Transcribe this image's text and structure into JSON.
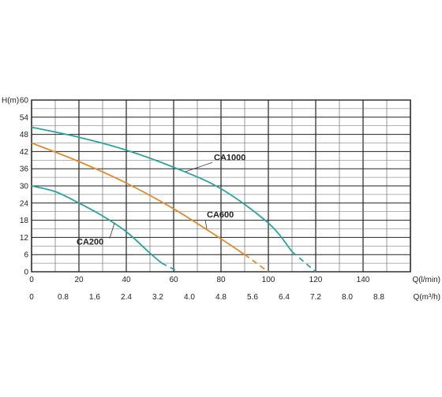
{
  "chart_data": {
    "type": "line",
    "title": "",
    "ylabel": "H(m)",
    "xlabel": "Q(l/min)",
    "x2label": "Q(m³/h)",
    "xlim": [
      0,
      160
    ],
    "ylim": [
      0,
      60
    ],
    "grid": true,
    "y_ticks": [
      "0",
      "6",
      "12",
      "18",
      "24",
      "30",
      "36",
      "42",
      "48",
      "54",
      "60"
    ],
    "x_ticks": [
      "0",
      "20",
      "40",
      "60",
      "80",
      "100",
      "120",
      "140"
    ],
    "x2_ticks": [
      "0",
      "0.8",
      "1.6",
      "2.4",
      "3.2",
      "4.0",
      "4.8",
      "5.6",
      "6.4",
      "7.2",
      "8.0",
      "8.8"
    ],
    "series": [
      {
        "name": "CA200",
        "color": "#2aa3a3",
        "points": [
          [
            0,
            30
          ],
          [
            10,
            28
          ],
          [
            20,
            24
          ],
          [
            30,
            19.5
          ],
          [
            40,
            14
          ],
          [
            50,
            6.5
          ],
          [
            55,
            3
          ],
          [
            62,
            0
          ]
        ],
        "dash_from_x": 55
      },
      {
        "name": "CA600",
        "color": "#e38a2b",
        "points": [
          [
            0,
            45
          ],
          [
            20,
            38.5
          ],
          [
            40,
            31
          ],
          [
            60,
            22
          ],
          [
            80,
            11.5
          ],
          [
            90,
            6
          ],
          [
            100,
            0
          ]
        ],
        "dash_from_x": 90
      },
      {
        "name": "CA1000",
        "color": "#2aa3a3",
        "points": [
          [
            0,
            50.5
          ],
          [
            20,
            47
          ],
          [
            40,
            42.5
          ],
          [
            60,
            36.5
          ],
          [
            80,
            29
          ],
          [
            100,
            17
          ],
          [
            110,
            7
          ],
          [
            120,
            0
          ]
        ],
        "dash_from_x": 110
      }
    ],
    "annotations": [
      {
        "text": "CA1000",
        "x": 77,
        "y": 39,
        "leader_to": [
          65,
          35
        ]
      },
      {
        "text": "CA600",
        "x": 74,
        "y": 19,
        "leader_to": [
          74,
          15
        ]
      },
      {
        "text": "CA200",
        "x": 19,
        "y": 9.5,
        "leader_to": [
          35,
          17
        ]
      }
    ]
  }
}
